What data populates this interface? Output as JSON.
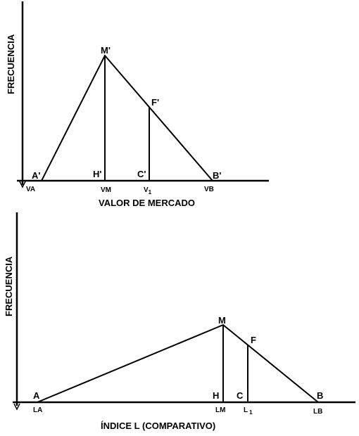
{
  "top": {
    "ylabel": "FRECUENCIA",
    "xlabel": "VALOR DE MERCADO",
    "points": {
      "apex": "M'",
      "mid": "F'",
      "left": "A'",
      "right": "B'",
      "h": "H'",
      "c": "C'"
    },
    "ticks": {
      "left": "VA",
      "apex": "VM",
      "v1_main": "V",
      "v1_sub": "1",
      "right": "VB"
    }
  },
  "bottom": {
    "ylabel": "FRECUENCIA",
    "xlabel": "ÍNDICE L (COMPARATIVO)",
    "points": {
      "apex": "M",
      "mid": "F",
      "left": "A",
      "right": "B",
      "h": "H",
      "c": "C"
    },
    "ticks": {
      "left": "LA",
      "apex": "LM",
      "l1_main": "L",
      "l1_sub": "1",
      "right": "LB"
    }
  }
}
